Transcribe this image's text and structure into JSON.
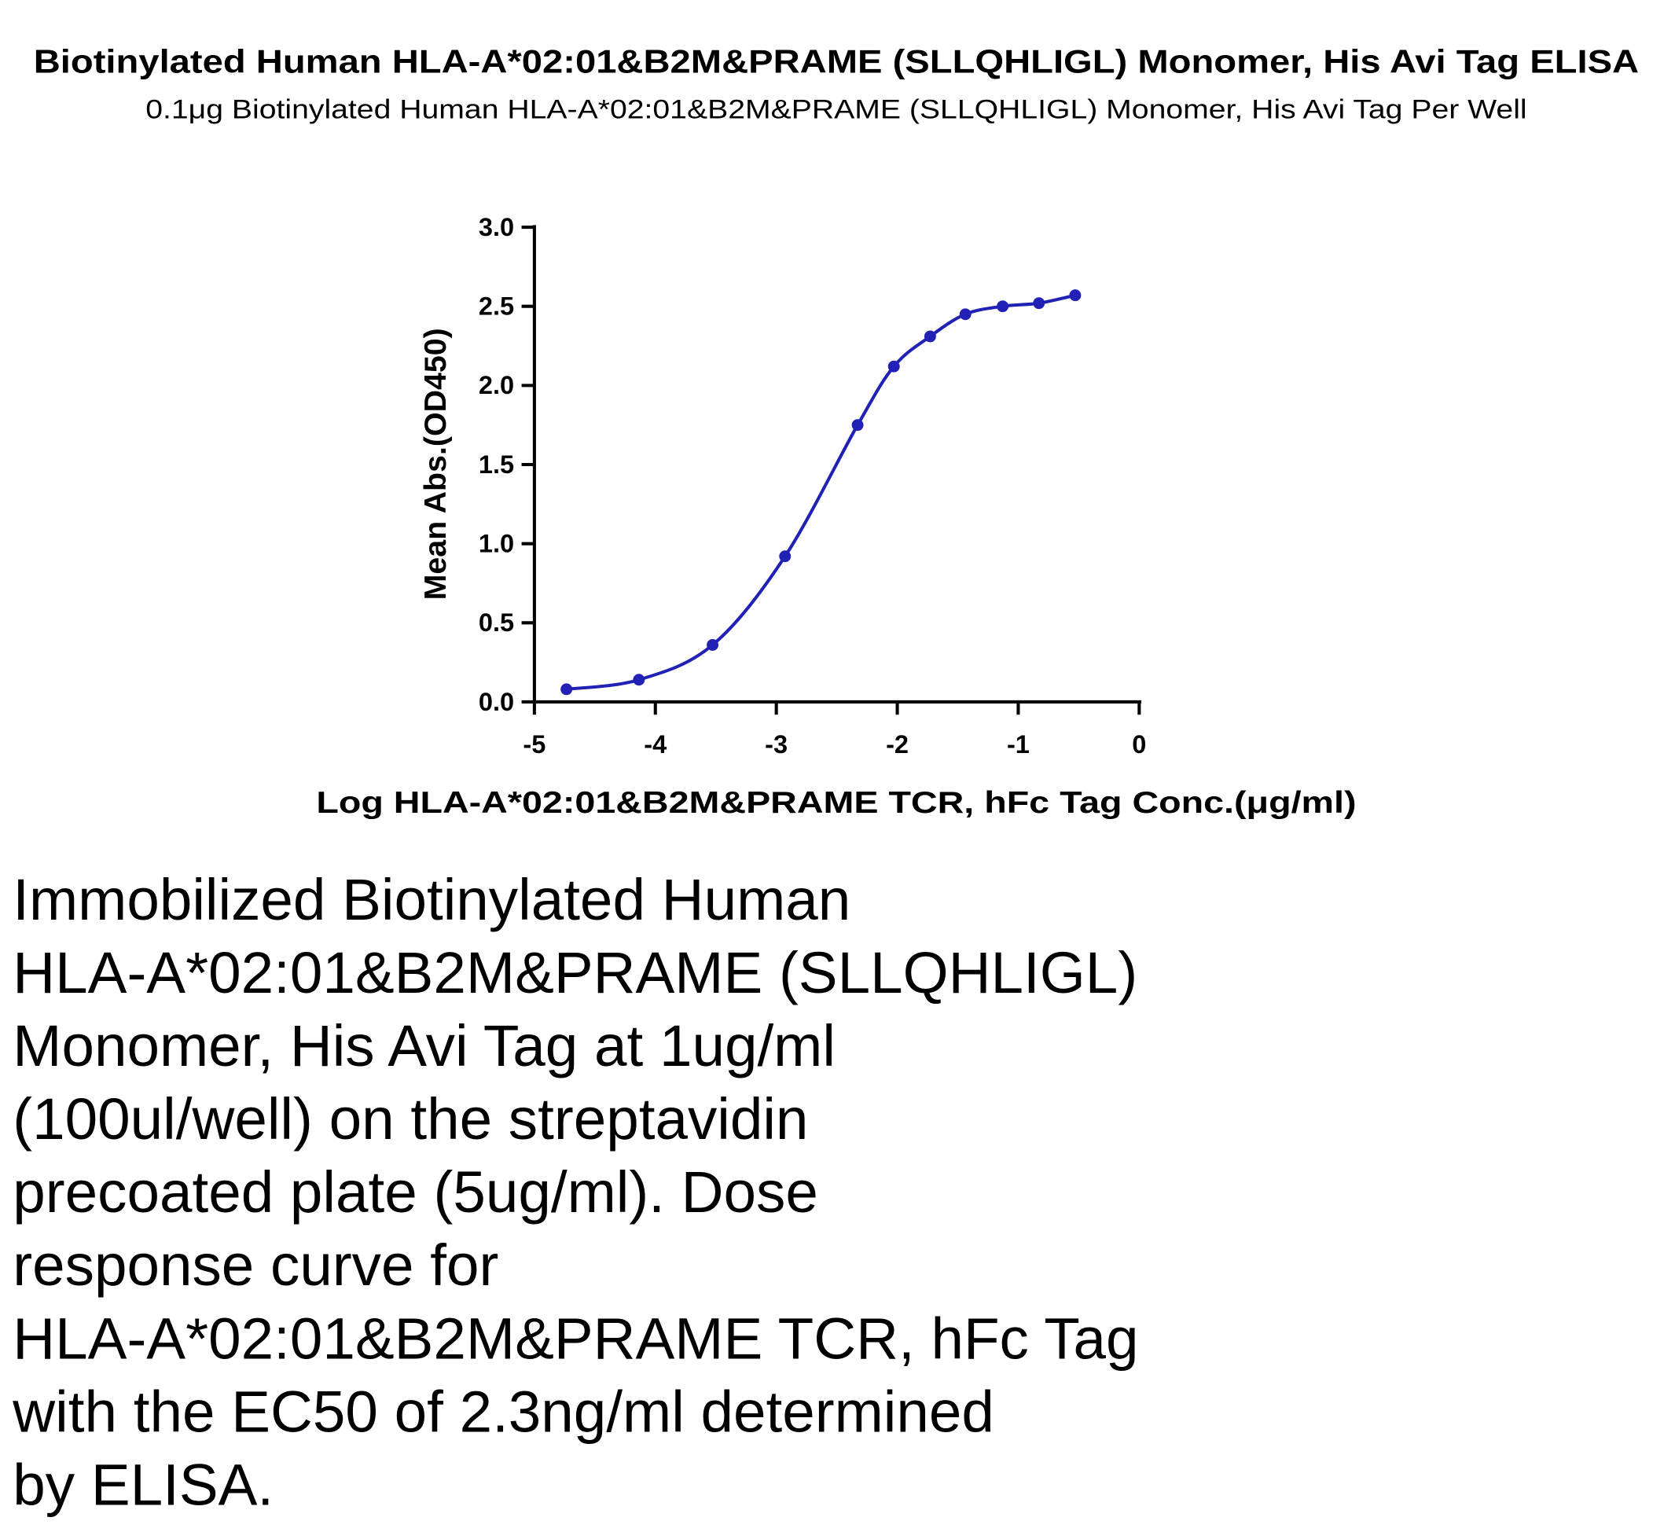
{
  "chart_data": {
    "type": "line",
    "title": "Biotinylated Human HLA-A*02:01&B2M&PRAME (SLLQHLIGL) Monomer, His Avi Tag ELISA",
    "subtitle": "0.1μg Biotinylated Human HLA-A*02:01&B2M&PRAME (SLLQHLIGL) Monomer, His Avi Tag Per Well",
    "x_label": "Log HLA-A*02:01&B2M&PRAME TCR, hFc Tag Conc.(μg/ml)",
    "y_label": "Mean Abs.(OD450)",
    "x": [
      -4.735,
      -4.136,
      -3.527,
      -2.928,
      -2.328,
      -2.028,
      -1.728,
      -1.437,
      -1.129,
      -0.829,
      -0.529
    ],
    "series": [
      {
        "color": "#2121b5",
        "values": [
          0.08,
          0.14,
          0.36,
          0.92,
          1.75,
          2.12,
          2.31,
          2.45,
          2.5,
          2.52,
          2.57
        ]
      }
    ],
    "xlim": [
      -5,
      0
    ],
    "ylim": [
      0,
      3
    ],
    "xticks": [
      -5,
      -4,
      -3,
      -2,
      -1,
      0
    ],
    "yticks": [
      {
        "value": 0,
        "label": "0.0"
      },
      0.5,
      {
        "value": 1,
        "label": "1.0"
      },
      1.5,
      {
        "value": 2,
        "label": "2.0"
      },
      2.5,
      {
        "value": 3,
        "label": "3.0"
      }
    ],
    "description": [
      "Immobilized Biotinylated Human",
      "HLA-A*02:01&B2M&PRAME (SLLQHLIGL)",
      "Monomer, His Avi Tag at 1ug/ml",
      "(100ul/well) on the streptavidin",
      "precoated plate (5ug/ml). Dose",
      "response curve for",
      "HLA-A*02:01&B2M&PRAME TCR, hFc Tag",
      "with the EC50 of 2.3ng/ml determined",
      "by ELISA."
    ]
  }
}
